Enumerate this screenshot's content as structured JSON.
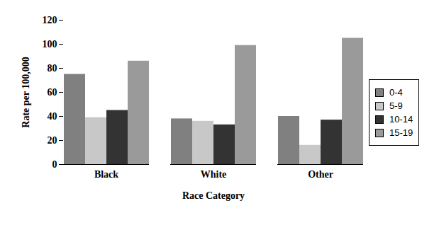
{
  "chart_data": {
    "type": "bar",
    "categories": [
      "Black",
      "White",
      "Other"
    ],
    "series": [
      {
        "name": "0-4",
        "color": "#808080",
        "values": [
          75,
          38,
          40
        ]
      },
      {
        "name": "5-9",
        "color": "#c8c8c8",
        "values": [
          39,
          36,
          16
        ]
      },
      {
        "name": "10-14",
        "color": "#333333",
        "values": [
          45,
          33,
          37
        ]
      },
      {
        "name": "15-19",
        "color": "#9a9a9a",
        "values": [
          86,
          99,
          105
        ]
      }
    ],
    "x_label": "Race Category",
    "y_label": "Rate per 100,000",
    "ylim": [
      0,
      120
    ],
    "yticks": [
      0,
      20,
      40,
      60,
      80,
      100,
      120
    ],
    "grid": false,
    "legend": "right"
  }
}
